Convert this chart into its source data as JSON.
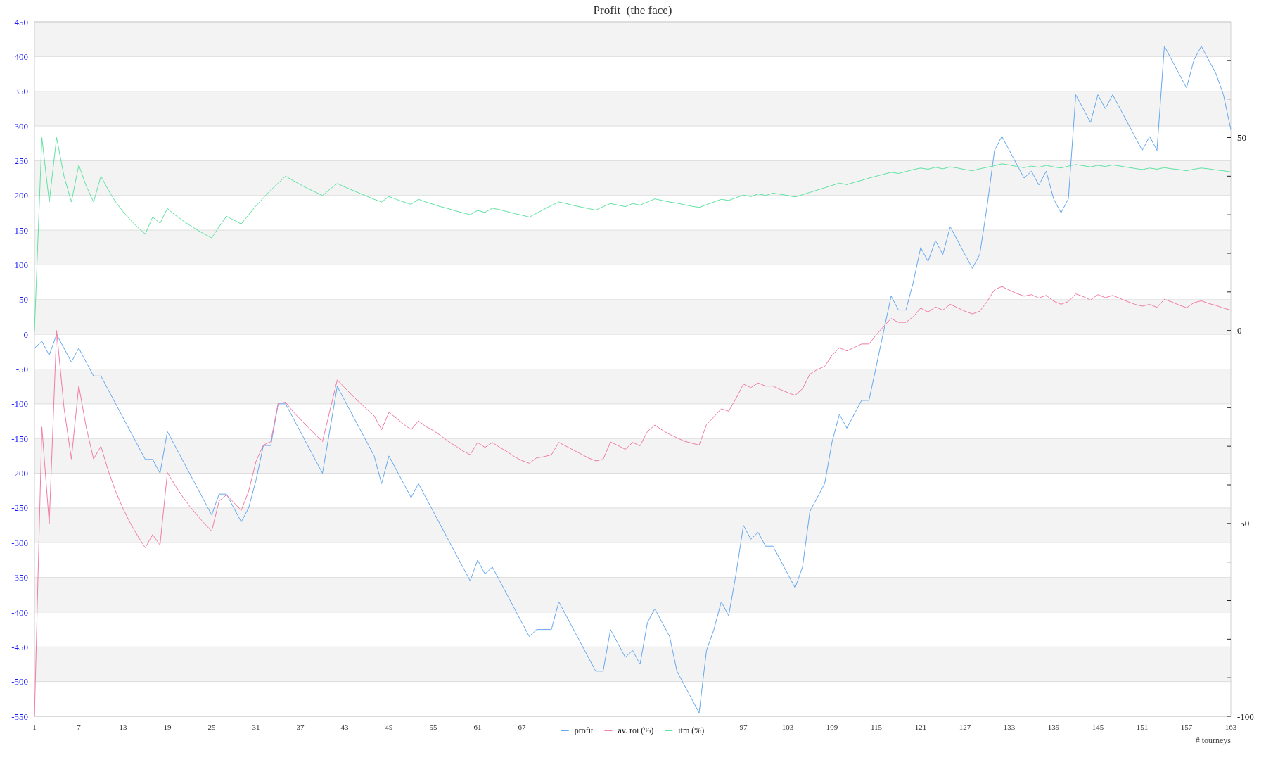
{
  "chart_data": {
    "type": "line",
    "title": "Profit  (the face)",
    "xlabel": "# tourneys",
    "xlim": [
      1,
      163
    ],
    "xticks": [
      1,
      7,
      13,
      19,
      25,
      31,
      37,
      43,
      49,
      55,
      61,
      67,
      97,
      103,
      109,
      115,
      121,
      127,
      133,
      139,
      145,
      151,
      157,
      163
    ],
    "ylim": [
      -550,
      450
    ],
    "yticks": [
      -550,
      -500,
      -450,
      -400,
      -350,
      -300,
      -250,
      -200,
      -150,
      -100,
      -50,
      0,
      50,
      100,
      150,
      200,
      250,
      300,
      350,
      400,
      450
    ],
    "y2lim": [
      -100,
      80
    ],
    "y2ticks": [
      -100,
      {
        "value": -90,
        "label": null
      },
      {
        "value": -80,
        "label": null
      },
      {
        "value": -70,
        "label": null
      },
      {
        "value": -60,
        "label": null
      },
      -50,
      {
        "value": -40,
        "label": null
      },
      {
        "value": -30,
        "label": null
      },
      {
        "value": -20,
        "label": null
      },
      {
        "value": -10,
        "label": null
      },
      0,
      {
        "value": 10,
        "label": null
      },
      {
        "value": 20,
        "label": null
      },
      {
        "value": 30,
        "label": null
      },
      {
        "value": 40,
        "label": null
      },
      50,
      {
        "value": 60,
        "label": null
      },
      {
        "value": 70,
        "label": null
      }
    ],
    "grid": "y",
    "legend": "bottom",
    "bands": [
      {
        "axis": "y",
        "from": 400,
        "to": 450,
        "color": "#f3f3f3"
      },
      {
        "axis": "y",
        "from": 300,
        "to": 350,
        "color": "#f3f3f3"
      },
      {
        "axis": "y",
        "from": 200,
        "to": 250,
        "color": "#f3f3f3"
      },
      {
        "axis": "y",
        "from": 100,
        "to": 150,
        "color": "#f3f3f3"
      },
      {
        "axis": "y",
        "from": 0,
        "to": 50,
        "color": "#f3f3f3"
      },
      {
        "axis": "y",
        "from": -100,
        "to": -50,
        "color": "#f3f3f3"
      },
      {
        "axis": "y",
        "from": -200,
        "to": -150,
        "color": "#f3f3f3"
      },
      {
        "axis": "y",
        "from": -300,
        "to": -250,
        "color": "#f3f3f3"
      },
      {
        "axis": "y",
        "from": -400,
        "to": -350,
        "color": "#f3f3f3"
      },
      {
        "axis": "y",
        "from": -500,
        "to": -450,
        "color": "#f3f3f3"
      }
    ],
    "series": [
      {
        "name": "profit",
        "color": "#64a8f0",
        "x": [
          1,
          2,
          3,
          4,
          5,
          6,
          7,
          8,
          9,
          10,
          16,
          17,
          18,
          19,
          25,
          26,
          27,
          29,
          30,
          31,
          32,
          33,
          34,
          35,
          40,
          42,
          47,
          48,
          49,
          50,
          51,
          52,
          53,
          54,
          60,
          61,
          62,
          63,
          68,
          69,
          71,
          72,
          77,
          78,
          79,
          81,
          82,
          83,
          84,
          85,
          86,
          87,
          88,
          91,
          92,
          93,
          94,
          95,
          96,
          97,
          98,
          99,
          100,
          101,
          104,
          105,
          106,
          108,
          109,
          110,
          111,
          113,
          114,
          117,
          118,
          119,
          120,
          121,
          122,
          123,
          124,
          125,
          128,
          129,
          130,
          131,
          132,
          135,
          136,
          137,
          138,
          139,
          140,
          141,
          142,
          144,
          145,
          146,
          147,
          151,
          152,
          153,
          154,
          157,
          158,
          159,
          161,
          162,
          163
        ],
        "values": [
          -20,
          -10,
          -30,
          0,
          -20,
          -40,
          -20,
          -40,
          -60,
          -60,
          -180,
          -180,
          -200,
          -140,
          -260,
          -230,
          -230,
          -270,
          -250,
          -210,
          -160,
          -160,
          -100,
          -100,
          -200,
          -75,
          -175,
          -215,
          -175,
          -195,
          -215,
          -235,
          -215,
          -235,
          -355,
          -325,
          -345,
          -335,
          -435,
          -425,
          -425,
          -385,
          -485,
          -485,
          -425,
          -465,
          -455,
          -475,
          -415,
          -395,
          -415,
          -435,
          -485,
          -545,
          -455,
          -425,
          -385,
          -405,
          -345,
          -275,
          -295,
          -285,
          -305,
          -305,
          -365,
          -335,
          -255,
          -215,
          -155,
          -115,
          -135,
          -95,
          -95,
          55,
          35,
          35,
          75,
          125,
          105,
          135,
          115,
          155,
          95,
          115,
          185,
          265,
          285,
          225,
          235,
          215,
          235,
          195,
          175,
          195,
          345,
          305,
          345,
          325,
          345,
          265,
          285,
          265,
          415,
          355,
          395,
          415,
          375,
          345,
          295
        ]
      },
      {
        "name": "av. roi (%)",
        "color": "#f27ca6",
        "axis": "y2",
        "x": [
          1,
          2,
          3,
          4,
          5,
          6,
          7,
          8,
          9,
          10,
          11,
          12,
          13,
          14,
          15,
          16,
          17,
          18,
          19,
          20,
          21,
          22,
          23,
          24,
          25,
          26,
          27,
          28,
          29,
          30,
          31,
          32,
          33,
          34,
          35,
          36,
          37,
          38,
          39,
          40,
          42,
          43,
          44,
          45,
          46,
          47,
          48,
          49,
          50,
          51,
          52,
          53,
          54,
          55,
          56,
          57,
          58,
          59,
          60,
          61,
          62,
          63,
          64,
          65,
          66,
          67,
          68,
          69,
          70,
          71,
          72,
          73,
          74,
          75,
          76,
          77,
          78,
          79,
          80,
          81,
          82,
          83,
          84,
          85,
          86,
          87,
          88,
          89,
          90,
          91,
          92,
          93,
          94,
          95,
          96,
          97,
          98,
          99,
          100,
          101,
          102,
          103,
          104,
          105,
          106,
          107,
          108,
          109,
          110,
          111,
          112,
          113,
          114,
          115,
          116,
          117,
          118,
          119,
          120,
          121,
          122,
          123,
          124,
          125,
          126,
          127,
          128,
          129,
          130,
          131,
          132,
          133,
          134,
          135,
          136,
          137,
          138,
          139,
          140,
          141,
          142,
          143,
          144,
          145,
          146,
          147,
          148,
          149,
          150,
          151,
          152,
          153,
          154,
          155,
          156,
          157,
          158,
          159,
          160,
          161,
          162,
          163
        ],
        "values": [
          -100,
          -25,
          -50,
          0,
          -20,
          -33.3,
          -14.3,
          -25,
          -33.3,
          -30,
          -36.4,
          -41.7,
          -46.2,
          -50,
          -53.3,
          -56.3,
          -52.9,
          -55.6,
          -36.8,
          -40,
          -42.9,
          -45.5,
          -47.8,
          -50,
          -52,
          -44.2,
          -42.6,
          -44.6,
          -46.6,
          -41.7,
          -33.9,
          -29.7,
          -28.8,
          -18.9,
          -18.6,
          -21,
          -23,
          -25,
          -26.9,
          -28.8,
          -12.8,
          -14.8,
          -16.8,
          -18.6,
          -20.4,
          -22.1,
          -25.7,
          -21.2,
          -22.7,
          -24.3,
          -25.7,
          -23.4,
          -24.9,
          -25.9,
          -27.2,
          -28.7,
          -29.9,
          -31.2,
          -32.2,
          -29,
          -30.3,
          -29,
          -30.3,
          -31.4,
          -32.7,
          -33.7,
          -34.4,
          -33,
          -32.7,
          -32.2,
          -29,
          -30,
          -31,
          -32,
          -33,
          -33.8,
          -33.4,
          -28.9,
          -29.8,
          -30.8,
          -29,
          -29.9,
          -26.2,
          -24.5,
          -25.8,
          -26.9,
          -27.8,
          -28.7,
          -29.2,
          -29.7,
          -24.4,
          -22.4,
          -20.3,
          -20.9,
          -17.6,
          -13.9,
          -14.8,
          -13.6,
          -14.4,
          -14.4,
          -15.3,
          -16.1,
          -16.8,
          -15.1,
          -11.3,
          -10.1,
          -9.3,
          -6.4,
          -4.5,
          -5.3,
          -4.4,
          -3.5,
          -3.5,
          -1.1,
          1.1,
          3.1,
          2.1,
          2.1,
          3.6,
          5.8,
          4.8,
          6.1,
          5.3,
          6.8,
          5.9,
          5,
          4.3,
          5,
          7.5,
          10.6,
          11.4,
          10.5,
          9.6,
          8.9,
          9.3,
          8.4,
          9.1,
          7.6,
          6.8,
          7.5,
          9.5,
          8.8,
          7.9,
          9.3,
          8.5,
          9.1,
          8.3,
          7.5,
          6.8,
          6.3,
          6.8,
          6,
          8.1,
          7.4,
          6.6,
          5.9,
          7.2,
          7.7,
          7,
          6.5,
          5.8,
          5.3
        ]
      },
      {
        "name": "itm (%)",
        "color": "#5ee3a1",
        "axis": "y2",
        "x": [
          1,
          2,
          3,
          4,
          5,
          6,
          7,
          8,
          9,
          10,
          11,
          12,
          13,
          14,
          15,
          16,
          17,
          18,
          19,
          20,
          21,
          22,
          23,
          24,
          25,
          26,
          27,
          28,
          29,
          30,
          31,
          32,
          33,
          34,
          35,
          36,
          37,
          38,
          39,
          40,
          41,
          42,
          43,
          44,
          45,
          46,
          47,
          48,
          49,
          50,
          51,
          52,
          53,
          54,
          55,
          56,
          57,
          58,
          59,
          60,
          61,
          62,
          63,
          64,
          65,
          66,
          67,
          68,
          69,
          70,
          71,
          72,
          73,
          74,
          75,
          76,
          77,
          78,
          79,
          80,
          81,
          82,
          83,
          84,
          85,
          86,
          87,
          88,
          89,
          90,
          91,
          92,
          93,
          94,
          95,
          96,
          97,
          98,
          99,
          100,
          101,
          102,
          103,
          104,
          105,
          106,
          107,
          108,
          109,
          110,
          111,
          112,
          113,
          114,
          115,
          116,
          117,
          118,
          119,
          120,
          121,
          122,
          123,
          124,
          125,
          126,
          127,
          128,
          129,
          130,
          131,
          132,
          133,
          134,
          135,
          136,
          137,
          138,
          139,
          140,
          141,
          142,
          143,
          144,
          145,
          146,
          147,
          148,
          149,
          150,
          151,
          152,
          153,
          154,
          155,
          156,
          157,
          158,
          159,
          160,
          161,
          162,
          163
        ],
        "values": [
          0,
          50,
          33.3,
          50,
          40,
          33.3,
          42.9,
          37.5,
          33.3,
          40,
          36.4,
          33.3,
          30.8,
          28.6,
          26.7,
          25,
          29.4,
          27.8,
          31.6,
          30,
          28.6,
          27.3,
          26.1,
          25,
          24,
          26.9,
          29.6,
          28.6,
          27.6,
          30,
          32.3,
          34.4,
          36.4,
          38.2,
          40,
          38.9,
          37.8,
          36.8,
          35.9,
          35,
          36.6,
          38.1,
          37.2,
          36.4,
          35.6,
          34.8,
          34,
          33.3,
          34.7,
          34,
          33.3,
          32.7,
          34,
          33.3,
          32.7,
          32.1,
          31.6,
          31,
          30.5,
          30,
          31.1,
          30.6,
          31.7,
          31.3,
          30.8,
          30.3,
          29.9,
          29.4,
          30.4,
          31.4,
          32.4,
          33.3,
          32.9,
          32.4,
          32,
          31.6,
          31.2,
          32.1,
          32.9,
          32.5,
          32.1,
          32.9,
          32.5,
          33.3,
          34.1,
          33.7,
          33.3,
          33,
          32.6,
          32.2,
          31.9,
          32.6,
          33.3,
          34,
          33.7,
          34.4,
          35.1,
          34.7,
          35.4,
          35,
          35.6,
          35.3,
          35,
          34.6,
          35.2,
          35.8,
          36.4,
          37,
          37.6,
          38.2,
          37.8,
          38.4,
          38.9,
          39.5,
          40,
          40.5,
          41,
          40.7,
          41.2,
          41.7,
          42.1,
          41.8,
          42.3,
          41.9,
          42.4,
          42.1,
          41.7,
          41.4,
          41.9,
          42.3,
          42.7,
          43.2,
          42.9,
          42.5,
          42.2,
          42.6,
          42.3,
          42.8,
          42.4,
          42.1,
          42.6,
          43,
          42.7,
          42.4,
          42.8,
          42.5,
          42.9,
          42.6,
          42.3,
          42,
          41.7,
          42.1,
          41.8,
          42.2,
          41.9,
          41.7,
          41.4,
          41.8,
          42.1,
          41.9,
          41.6,
          41.4,
          41.1
        ]
      }
    ]
  }
}
